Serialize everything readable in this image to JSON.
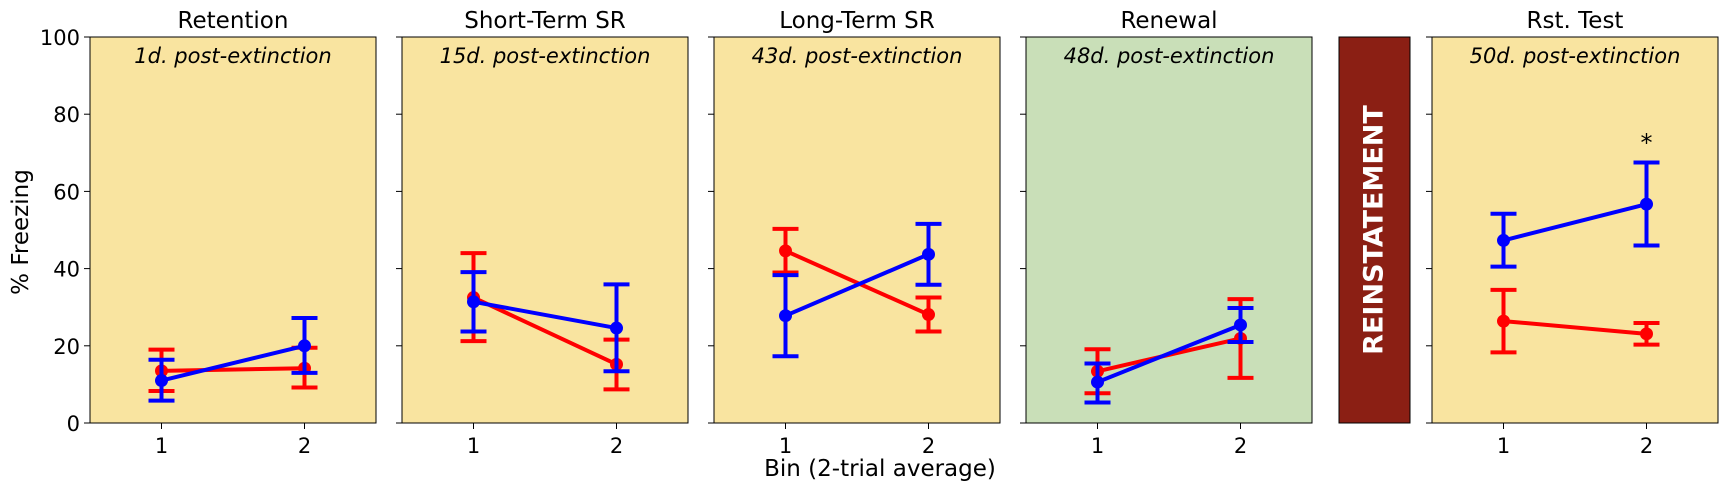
{
  "figure": {
    "ylabel": "% Freezing",
    "xlabel": "Bin (2-trial average)",
    "reinstatement_label": "REINSTATEMENT",
    "colors": {
      "series_red": "#ff0000",
      "series_blue": "#0000ff",
      "panel_yellow": "#f9e4a0",
      "panel_green": "#c9dfb8",
      "reinstatement_bar": "#8b1f14"
    }
  },
  "chart_data": [
    {
      "type": "line",
      "title": "Retention",
      "annotation": "1d. post-extinction",
      "background": "yellow",
      "x": [
        1,
        2
      ],
      "ylim": [
        0,
        100
      ],
      "yticks": [
        0,
        20,
        40,
        60,
        80,
        100
      ],
      "series": [
        {
          "color": "red",
          "values": [
            13.5,
            14.2
          ],
          "err_low": [
            8.3,
            9.2
          ],
          "err_high": [
            19.0,
            19.5
          ]
        },
        {
          "color": "blue",
          "values": [
            11.0,
            20.0
          ],
          "err_low": [
            5.8,
            13.0
          ],
          "err_high": [
            16.4,
            27.2
          ]
        }
      ],
      "significance": []
    },
    {
      "type": "line",
      "title": "Short-Term SR",
      "annotation": "15d. post-extinction",
      "background": "yellow",
      "x": [
        1,
        2
      ],
      "ylim": [
        0,
        100
      ],
      "series": [
        {
          "color": "red",
          "values": [
            32.5,
            15.2
          ],
          "err_low": [
            21.2,
            8.7
          ],
          "err_high": [
            44.0,
            21.6
          ]
        },
        {
          "color": "blue",
          "values": [
            31.4,
            24.6
          ],
          "err_low": [
            23.7,
            13.4
          ],
          "err_high": [
            39.1,
            35.9
          ]
        }
      ],
      "significance": []
    },
    {
      "type": "line",
      "title": "Long-Term SR",
      "annotation": "43d. post-extinction",
      "background": "yellow",
      "x": [
        1,
        2
      ],
      "ylim": [
        0,
        100
      ],
      "series": [
        {
          "color": "red",
          "values": [
            44.6,
            28.1
          ],
          "err_low": [
            39.0,
            23.7
          ],
          "err_high": [
            50.3,
            32.5
          ]
        },
        {
          "color": "blue",
          "values": [
            27.8,
            43.7
          ],
          "err_low": [
            17.3,
            35.8
          ],
          "err_high": [
            38.3,
            51.6
          ]
        }
      ],
      "significance": []
    },
    {
      "type": "line",
      "title": "Renewal",
      "annotation": "48d. post-extinction",
      "background": "green",
      "x": [
        1,
        2
      ],
      "ylim": [
        0,
        100
      ],
      "series": [
        {
          "color": "red",
          "values": [
            13.4,
            21.9
          ],
          "err_low": [
            7.7,
            11.7
          ],
          "err_high": [
            19.1,
            32.1
          ]
        },
        {
          "color": "blue",
          "values": [
            10.6,
            25.4
          ],
          "err_low": [
            5.3,
            21.0
          ],
          "err_high": [
            15.4,
            29.8
          ]
        }
      ],
      "significance": []
    },
    {
      "type": "line",
      "title": "Rst. Test",
      "annotation": "50d. post-extinction",
      "background": "yellow",
      "x": [
        1,
        2
      ],
      "ylim": [
        0,
        100
      ],
      "series": [
        {
          "color": "red",
          "values": [
            26.4,
            23.1
          ],
          "err_low": [
            18.3,
            20.3
          ],
          "err_high": [
            34.5,
            25.9
          ]
        },
        {
          "color": "blue",
          "values": [
            47.3,
            56.7
          ],
          "err_low": [
            40.5,
            46.0
          ],
          "err_high": [
            54.2,
            67.5
          ]
        }
      ],
      "significance": [
        {
          "x": 2,
          "y": 73,
          "label": "*"
        }
      ]
    }
  ]
}
